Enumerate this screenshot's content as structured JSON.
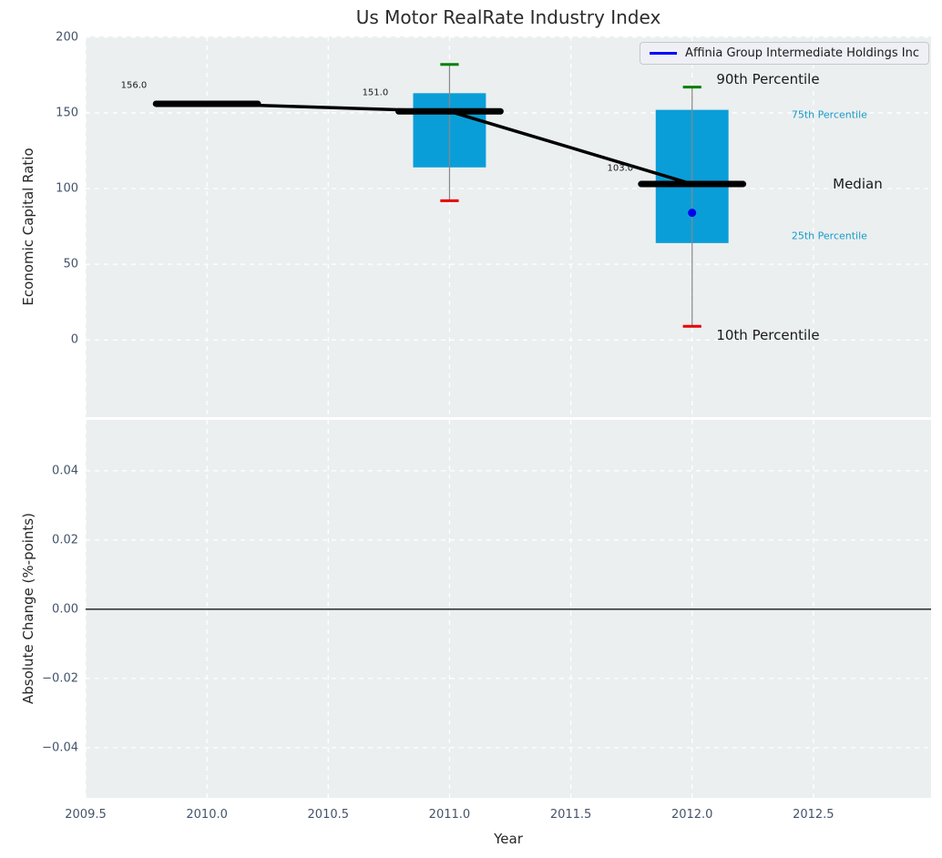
{
  "title": "Us Motor RealRate Industry Index",
  "legend": {
    "label": "Affinia Group Intermediate Holdings Inc",
    "line_color": "#0000ff"
  },
  "colors": {
    "figure_bg": "#ffffff",
    "plot_bg": "#ebeff0",
    "grid": "#ffffff",
    "box_fill": "#0a9ed9",
    "whisker": "#888888",
    "cap_high": "#008000",
    "cap_low": "#e60000",
    "median": "#000000",
    "company": "#0000ee",
    "tick_text": "#44536b",
    "label_text": "#262626",
    "cyan_text": "#189bc8"
  },
  "chart_data": [
    {
      "type": "boxplot",
      "title": "Us Motor RealRate Industry Index",
      "xlabel": "Year",
      "ylabel": "Economic Capital Ratio",
      "xlim": [
        2009.5,
        2012.985
      ],
      "ylim": [
        -51,
        200.5
      ],
      "grid": true,
      "legend_position": "upper right",
      "xticks": [
        2009.5,
        2010.0,
        2010.5,
        2011.0,
        2011.5,
        2012.0,
        2012.5
      ],
      "xtick_labels": [
        "2009.5",
        "2010.0",
        "2010.5",
        "2011.0",
        "2011.5",
        "2012.0",
        "2012.5"
      ],
      "yticks": [
        0,
        50,
        100,
        150,
        200
      ],
      "ytick_labels": [
        "0",
        "50",
        "100",
        "150",
        "200"
      ],
      "boxes": [
        {
          "x": 2010,
          "median": 156,
          "q1": 156,
          "q3": 156,
          "whisker_low": 156,
          "whisker_high": 156
        },
        {
          "x": 2011,
          "median": 151,
          "q1": 114,
          "q3": 163,
          "whisker_low": 92,
          "whisker_high": 182
        },
        {
          "x": 2012,
          "median": 103,
          "q1": 64,
          "q3": 152,
          "whisker_low": 9,
          "whisker_high": 167
        }
      ],
      "median_trend": {
        "x": [
          2010,
          2011,
          2012
        ],
        "y": [
          156,
          151,
          103
        ]
      },
      "company_series": {
        "name": "Affinia Group Intermediate Holdings Inc",
        "x": [
          2012
        ],
        "y": [
          84
        ]
      },
      "value_labels": [
        {
          "text": "156.0",
          "x": 2009.645,
          "y": 168
        },
        {
          "text": "151.0",
          "x": 2010.64,
          "y": 163
        },
        {
          "text": "103.0",
          "x": 2011.65,
          "y": 113
        }
      ],
      "percentile_labels": [
        {
          "text": "90th Percentile",
          "x": 2012.1,
          "y": 172,
          "style": "large"
        },
        {
          "text": "75th Percentile",
          "x": 2012.41,
          "y": 149,
          "style": "small"
        },
        {
          "text": "Median",
          "x": 2012.58,
          "y": 103,
          "style": "large"
        },
        {
          "text": "25th Percentile",
          "x": 2012.41,
          "y": 69,
          "style": "small"
        },
        {
          "text": "10th Percentile",
          "x": 2012.1,
          "y": 3,
          "style": "large"
        }
      ]
    },
    {
      "type": "line",
      "xlabel": "Year",
      "ylabel": "Absolute Change (%-points)",
      "ylim": [
        -0.0545,
        0.0547
      ],
      "yticks": [
        0.04,
        0.02,
        0.0,
        -0.02,
        -0.04
      ],
      "ytick_labels": [
        "0.04",
        "0.02",
        "0.00",
        "−0.02",
        "−0.04"
      ],
      "zero_line": 0.0,
      "series": []
    }
  ]
}
